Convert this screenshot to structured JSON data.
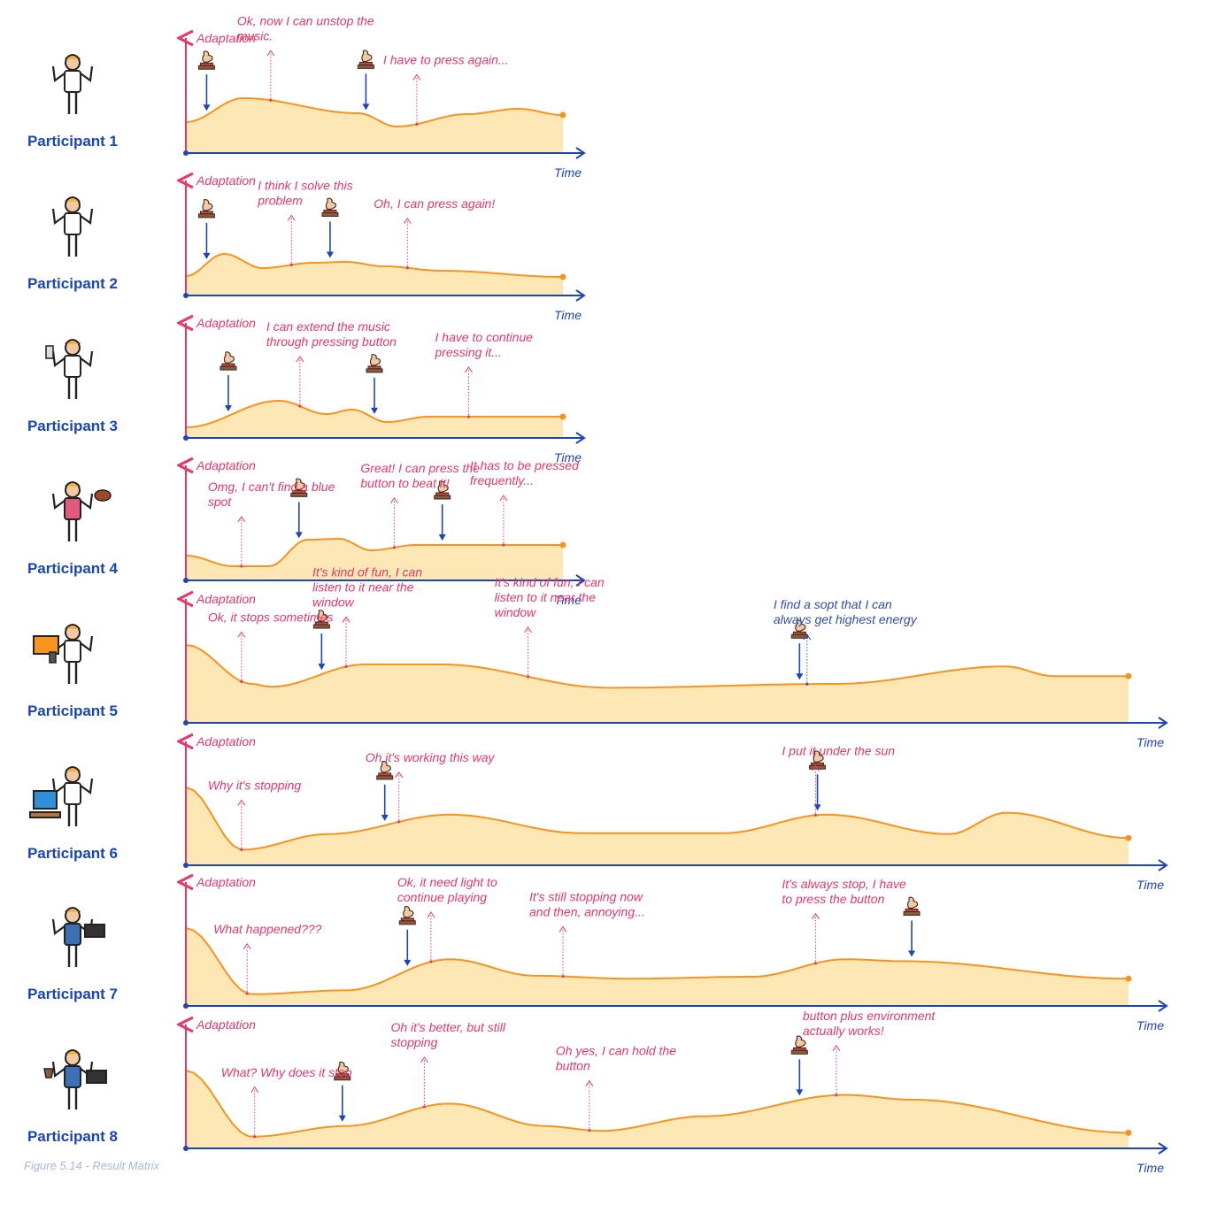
{
  "figure_caption": "Figure 5.14 - Result Matrix",
  "colors": {
    "axis_y": "#e8386a",
    "axis_x": "#1d44b8",
    "curve": "#f7931e",
    "fill": "#fce7b5",
    "annotation": "#e8386a",
    "annotation_highlight": "#2d4fb0",
    "press_arrow": "#1d44b8",
    "participant_label": "#1a45b5"
  },
  "chart_data": {
    "type": "area",
    "xlabel": "Time",
    "ylabel": "Adaptation",
    "participants": [
      {
        "label": "Participant 1",
        "icon": "person-in-suit-icon",
        "curve": [
          [
            0,
            0.35
          ],
          [
            0.09,
            0.62
          ],
          [
            0.27,
            0.45
          ],
          [
            0.33,
            0.3
          ],
          [
            0.44,
            0.44
          ],
          [
            0.52,
            0.5
          ],
          [
            0.59,
            0.43
          ]
        ],
        "press_times": [
          0.022,
          0.191
        ],
        "annotations": [
          {
            "text": "Ok, now I can unstop the music.",
            "x": 0.09
          },
          {
            "text": "I have to press again...",
            "x": 0.245
          }
        ]
      },
      {
        "label": "Participant 2",
        "icon": "person-with-muscles-icon",
        "curve": [
          [
            0,
            0.22
          ],
          [
            0.06,
            0.47
          ],
          [
            0.12,
            0.31
          ],
          [
            0.2,
            0.37
          ],
          [
            0.25,
            0.38
          ],
          [
            0.31,
            0.33
          ],
          [
            0.4,
            0.28
          ],
          [
            0.59,
            0.21
          ]
        ],
        "press_times": [
          0.022,
          0.153
        ],
        "annotations": [
          {
            "text": "I think I solve this problem",
            "x": 0.112
          },
          {
            "text": "Oh, I can press again!",
            "x": 0.235
          }
        ]
      },
      {
        "label": "Participant 3",
        "icon": "person-with-phone-icon",
        "curve": [
          [
            0,
            0.12
          ],
          [
            0.146,
            0.42
          ],
          [
            0.22,
            0.27
          ],
          [
            0.26,
            0.32
          ],
          [
            0.315,
            0.18
          ],
          [
            0.38,
            0.24
          ],
          [
            0.59,
            0.24
          ]
        ],
        "press_times": [
          0.045,
          0.2
        ],
        "annotations": [
          {
            "text": "I can extend the music through pressing button",
            "x": 0.121
          },
          {
            "text": "I have to continue pressing it...",
            "x": 0.3
          }
        ]
      },
      {
        "label": "Participant 4",
        "icon": "person-with-football-icon",
        "curve": [
          [
            0,
            0.28
          ],
          [
            0.074,
            0.16
          ],
          [
            0.13,
            0.16
          ],
          [
            0.19,
            0.46
          ],
          [
            0.24,
            0.47
          ],
          [
            0.29,
            0.34
          ],
          [
            0.36,
            0.4
          ],
          [
            0.59,
            0.4
          ]
        ],
        "press_times": [
          0.12,
          0.272
        ],
        "annotations": [
          {
            "text": "Omg, I can't find a blue spot",
            "x": 0.059
          },
          {
            "text": "Great! I can press the button to beat it!",
            "x": 0.221
          },
          {
            "text": "It has to be pressed frequently...",
            "x": 0.337
          }
        ]
      },
      {
        "label": "Participant 5",
        "icon": "person-with-speech-bubble-icon",
        "curve": [
          [
            0,
            0.8
          ],
          [
            0.07,
            0.4
          ],
          [
            0.09,
            0.37
          ],
          [
            0.19,
            0.6
          ],
          [
            0.27,
            0.6
          ],
          [
            0.45,
            0.36
          ],
          [
            0.69,
            0.4
          ],
          [
            0.87,
            0.58
          ],
          [
            0.92,
            0.48
          ],
          [
            1,
            0.48
          ]
        ],
        "press_times": [
          0.144,
          0.651
        ],
        "annotations": [
          {
            "text": "Ok, it stops sometimes",
            "x": 0.059
          },
          {
            "text": "It's kind of fun, I can listen to it near the window",
            "x": 0.17
          },
          {
            "text": "It's kind of fun, I can listen to it near the window",
            "x": 0.363
          },
          {
            "text": "I find a sopt that I can always get highest energy",
            "x": 0.659,
            "highlight": true
          }
        ]
      },
      {
        "label": "Participant 6",
        "icon": "person-at-desk-icon",
        "curve": [
          [
            0,
            0.8
          ],
          [
            0.06,
            0.16
          ],
          [
            0.15,
            0.32
          ],
          [
            0.28,
            0.52
          ],
          [
            0.42,
            0.33
          ],
          [
            0.57,
            0.33
          ],
          [
            0.68,
            0.52
          ],
          [
            0.81,
            0.32
          ],
          [
            0.87,
            0.54
          ],
          [
            1,
            0.28
          ]
        ],
        "press_times": [
          0.211,
          0.67
        ],
        "annotations": [
          {
            "text": "Why it's stopping",
            "x": 0.059
          },
          {
            "text": "Oh it's working this way",
            "x": 0.226
          },
          {
            "text": "I put it under the sun",
            "x": 0.668
          }
        ]
      },
      {
        "label": "Participant 7",
        "icon": "person-with-laptop-icon",
        "curve": [
          [
            0,
            0.8
          ],
          [
            0.07,
            0.12
          ],
          [
            0.17,
            0.16
          ],
          [
            0.28,
            0.48
          ],
          [
            0.37,
            0.31
          ],
          [
            0.47,
            0.28
          ],
          [
            0.6,
            0.3
          ],
          [
            0.7,
            0.48
          ],
          [
            0.76,
            0.46
          ],
          [
            1,
            0.28
          ]
        ],
        "press_times": [
          0.235,
          0.77
        ],
        "annotations": [
          {
            "text": "What happened???",
            "x": 0.065
          },
          {
            "text": "Ok, it need light to continue playing",
            "x": 0.26
          },
          {
            "text": "It's still stopping now and then, annoying...",
            "x": 0.4
          },
          {
            "text": "It's always stop, I have to press the button",
            "x": 0.668
          }
        ]
      },
      {
        "label": "Participant 8",
        "icon": "person-with-cup-and-laptop-icon",
        "curve": [
          [
            0,
            0.8
          ],
          [
            0.07,
            0.12
          ],
          [
            0.17,
            0.23
          ],
          [
            0.28,
            0.46
          ],
          [
            0.38,
            0.23
          ],
          [
            0.44,
            0.18
          ],
          [
            0.55,
            0.33
          ],
          [
            0.7,
            0.55
          ],
          [
            0.77,
            0.5
          ],
          [
            1,
            0.16
          ]
        ],
        "press_times": [
          0.166,
          0.651
        ],
        "annotations": [
          {
            "text": "What? Why does it stop",
            "x": 0.073
          },
          {
            "text": "Oh it's better, but still stopping",
            "x": 0.253
          },
          {
            "text": "Oh yes, I can hold the button",
            "x": 0.428
          },
          {
            "text": "button plus environment actually works!",
            "x": 0.69
          }
        ]
      }
    ]
  }
}
